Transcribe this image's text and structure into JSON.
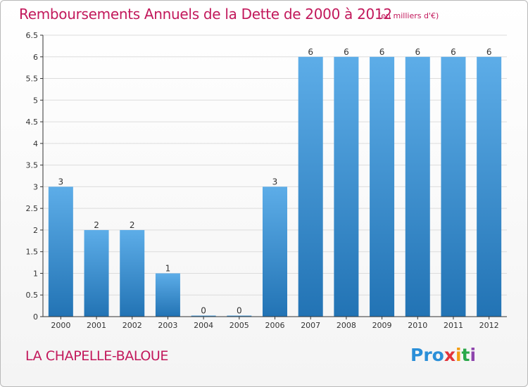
{
  "page": {
    "title": "Remboursements Annuels de la Dette de 2000 à 2012",
    "subtitle": "(en milliers d'€)",
    "commune": "LA CHAPELLE-BALOUE",
    "logo": [
      "Pro",
      "x",
      "i",
      "t",
      "i"
    ]
  },
  "colors": {
    "title": "#c2185b",
    "bar_top": "#5dade8",
    "bar_bottom": "#2273b4",
    "axis": "#333333",
    "grid": "#dcdcdc"
  },
  "chart_data": {
    "type": "bar",
    "title": "Remboursements Annuels de la Dette de 2000 à 2012",
    "xlabel": "",
    "ylabel": "",
    "ylim": [
      0,
      6.5
    ],
    "yticks": [
      "0",
      "0.5",
      "1",
      "1.5",
      "2",
      "2.5",
      "3",
      "3.5",
      "4",
      "4.5",
      "5",
      "5.5",
      "6",
      "6.5"
    ],
    "grid": true,
    "categories": [
      "2000",
      "2001",
      "2002",
      "2003",
      "2004",
      "2005",
      "2006",
      "2007",
      "2008",
      "2009",
      "2010",
      "2011",
      "2012"
    ],
    "values": [
      3,
      2,
      2,
      1,
      0,
      0,
      3,
      6,
      6,
      6,
      6,
      6,
      6
    ],
    "data_labels": [
      "3",
      "2",
      "2",
      "1",
      "0",
      "0",
      "3",
      "6",
      "6",
      "6",
      "6",
      "6",
      "6"
    ]
  }
}
